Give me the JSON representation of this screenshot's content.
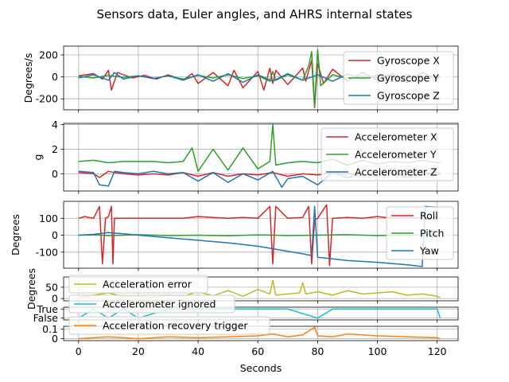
{
  "chart_data": {
    "type": "line",
    "title": "Sensors data, Euler angles, and AHRS internal states",
    "xlabel": "Seconds",
    "xlim": [
      -5,
      127
    ],
    "xticks": [
      0,
      20,
      40,
      60,
      80,
      100,
      120
    ],
    "grid": true,
    "panels": [
      {
        "name": "gyroscope",
        "ylabel": "Degrees/s",
        "ylim": [
          -300,
          280
        ],
        "yticks": [
          -200,
          0,
          200
        ],
        "legend_position": "right",
        "series": [
          {
            "name": "Gyroscope X",
            "color": "#d62728",
            "x": [
              0,
              5,
              8,
              10,
              11,
              13,
              15,
              18,
              22,
              26,
              30,
              35,
              38,
              40,
              45,
              50,
              52,
              55,
              60,
              62,
              64,
              65,
              66,
              70,
              75,
              76,
              78,
              79,
              80,
              82,
              85,
              90,
              95,
              100,
              105,
              110,
              115,
              120,
              121
            ],
            "y": [
              10,
              30,
              -20,
              60,
              -120,
              40,
              20,
              -10,
              15,
              -20,
              20,
              -30,
              30,
              -60,
              40,
              -80,
              60,
              -100,
              50,
              -120,
              80,
              -60,
              60,
              -70,
              80,
              -40,
              150,
              -280,
              120,
              -60,
              70,
              -40,
              40,
              -30,
              30,
              -50,
              40,
              -20,
              0
            ]
          },
          {
            "name": "Gyroscope Y",
            "color": "#2ca02c",
            "x": [
              0,
              5,
              10,
              15,
              20,
              25,
              30,
              35,
              40,
              45,
              50,
              55,
              60,
              64,
              65,
              66,
              70,
              75,
              77,
              78,
              79,
              80,
              81,
              85,
              90,
              95,
              100,
              105,
              110,
              115,
              120,
              121
            ],
            "y": [
              5,
              -10,
              15,
              -5,
              10,
              -15,
              10,
              -20,
              15,
              -10,
              20,
              -15,
              10,
              -40,
              50,
              -30,
              20,
              -30,
              100,
              230,
              -270,
              250,
              -80,
              20,
              -15,
              10,
              -10,
              15,
              -10,
              10,
              -5,
              0
            ]
          },
          {
            "name": "Gyroscope Z",
            "color": "#1f77b4",
            "x": [
              0,
              5,
              10,
              12,
              15,
              20,
              25,
              30,
              35,
              40,
              45,
              50,
              55,
              60,
              65,
              70,
              75,
              80,
              85,
              90,
              95,
              100,
              105,
              110,
              115,
              120,
              121
            ],
            "y": [
              -10,
              20,
              -30,
              40,
              -20,
              10,
              -15,
              10,
              -30,
              20,
              -40,
              30,
              -50,
              20,
              -40,
              30,
              -30,
              20,
              -40,
              25,
              -20,
              15,
              -25,
              20,
              -15,
              10,
              0
            ]
          }
        ]
      },
      {
        "name": "accelerometer",
        "ylabel": "g",
        "ylim": [
          -1.4,
          4.1
        ],
        "yticks": [
          0,
          2,
          4
        ],
        "legend_position": "right",
        "series": [
          {
            "name": "Accelerometer X",
            "color": "#d62728",
            "x": [
              0,
              5,
              7,
              10,
              12,
              15,
              20,
              25,
              30,
              35,
              40,
              45,
              50,
              55,
              60,
              65,
              70,
              75,
              80,
              85,
              90,
              95,
              100,
              105,
              110,
              115,
              120,
              121
            ],
            "y": [
              0.1,
              0.0,
              -0.3,
              0.2,
              0.1,
              0.0,
              -0.1,
              0.0,
              -0.1,
              0.1,
              -0.2,
              0.1,
              -0.2,
              0.0,
              -0.1,
              0.1,
              -0.2,
              0.0,
              -0.1,
              0.1,
              0.0,
              -0.1,
              0.0,
              0.1,
              -0.1,
              0.0,
              0.1,
              0.0
            ]
          },
          {
            "name": "Accelerometer Y",
            "color": "#2ca02c",
            "x": [
              0,
              5,
              10,
              15,
              20,
              25,
              30,
              35,
              38,
              40,
              45,
              50,
              55,
              60,
              64,
              65,
              66,
              70,
              75,
              80,
              85,
              90,
              95,
              100,
              105,
              110,
              115,
              120,
              121
            ],
            "y": [
              1.0,
              1.1,
              0.9,
              1.0,
              1.0,
              1.0,
              0.9,
              1.0,
              2.1,
              0.2,
              2.0,
              0.3,
              2.1,
              0.4,
              1.0,
              4.0,
              0.7,
              0.9,
              1.0,
              0.9,
              1.2,
              0.7,
              1.1,
              0.8,
              1.0,
              0.9,
              1.1,
              0.9,
              0.9
            ]
          },
          {
            "name": "Accelerometer Z",
            "color": "#1f77b4",
            "x": [
              0,
              5,
              7,
              10,
              12,
              15,
              20,
              25,
              30,
              35,
              40,
              45,
              50,
              55,
              60,
              65,
              68,
              70,
              75,
              80,
              85,
              90,
              95,
              100,
              105,
              110,
              115,
              120,
              121
            ],
            "y": [
              0.2,
              0.1,
              -0.9,
              -1.0,
              0.2,
              0.1,
              0.0,
              0.2,
              0.0,
              0.1,
              -0.6,
              0.1,
              -0.7,
              0.0,
              -0.5,
              0.2,
              -1.1,
              -0.4,
              -0.2,
              -0.9,
              0.1,
              -0.3,
              0.0,
              -0.2,
              0.1,
              -0.3,
              0.0,
              -0.1,
              0.0
            ]
          }
        ]
      },
      {
        "name": "euler",
        "ylabel": "Degrees",
        "ylim": [
          -195,
          200
        ],
        "yticks": [
          -100,
          0,
          100
        ],
        "legend_position": "right",
        "series": [
          {
            "name": "Roll",
            "color": "#d62728",
            "x": [
              0,
              2,
              5,
              7,
              8,
              9,
              10,
              11,
              11.5,
              12,
              15,
              20,
              30,
              35,
              40,
              45,
              50,
              55,
              60,
              64,
              65,
              66,
              70,
              75,
              77,
              78,
              79,
              80,
              83,
              84,
              85,
              90,
              95,
              100,
              105,
              110,
              115,
              120,
              121
            ],
            "y": [
              100,
              110,
              100,
              170,
              -170,
              100,
              110,
              170,
              -170,
              100,
              100,
              100,
              100,
              100,
              110,
              105,
              100,
              105,
              100,
              170,
              -170,
              170,
              100,
              105,
              170,
              -170,
              90,
              100,
              180,
              -180,
              100,
              105,
              100,
              110,
              100,
              105,
              100,
              105,
              100
            ]
          },
          {
            "name": "Pitch",
            "color": "#2ca02c",
            "x": [
              0,
              5,
              10,
              15,
              20,
              30,
              40,
              50,
              60,
              65,
              70,
              80,
              90,
              100,
              110,
              120,
              121
            ],
            "y": [
              0,
              2,
              -2,
              0,
              3,
              -2,
              0,
              -3,
              2,
              0,
              -2,
              0,
              3,
              -2,
              0,
              2,
              0
            ]
          },
          {
            "name": "Yaw",
            "color": "#1f77b4",
            "x": [
              0,
              5,
              10,
              15,
              20,
              30,
              40,
              50,
              60,
              65,
              70,
              75,
              78,
              79,
              80,
              85,
              90,
              100,
              110,
              115,
              116,
              120,
              121
            ],
            "y": [
              0,
              5,
              15,
              8,
              0,
              -15,
              -30,
              -45,
              -65,
              -80,
              -95,
              -110,
              -120,
              170,
              -130,
              -140,
              -150,
              -160,
              -175,
              -185,
              170,
              165,
              165
            ]
          }
        ]
      },
      {
        "name": "acceleration-error",
        "ylabel": "Degrees",
        "ylim": [
          -10,
          95
        ],
        "yticks": [
          0,
          50
        ],
        "legend_position": "top-left",
        "series": [
          {
            "name": "Acceleration error",
            "color": "#bcbd22",
            "x": [
              0,
              5,
              10,
              15,
              20,
              25,
              30,
              35,
              40,
              45,
              50,
              55,
              60,
              64,
              65,
              66,
              70,
              74,
              75,
              76,
              80,
              85,
              90,
              95,
              100,
              105,
              110,
              115,
              120,
              121
            ],
            "y": [
              5,
              15,
              25,
              8,
              10,
              5,
              15,
              10,
              30,
              12,
              35,
              10,
              40,
              20,
              80,
              15,
              20,
              25,
              70,
              20,
              30,
              15,
              35,
              20,
              25,
              30,
              15,
              20,
              10,
              5
            ]
          }
        ]
      },
      {
        "name": "accelerometer-ignored",
        "ylabel": "",
        "yticks_text": [
          "False",
          "True"
        ],
        "ylim": [
          -0.2,
          1.2
        ],
        "legend_position": "top-left",
        "series": [
          {
            "name": "Accelerometer ignored",
            "color": "#17becf",
            "x": [
              0,
              5,
              10,
              15,
              20,
              30,
              40,
              50,
              60,
              70,
              80,
              85,
              90,
              100,
              110,
              120,
              121
            ],
            "y": [
              0,
              1,
              0,
              1,
              0,
              1,
              1,
              1,
              1,
              1,
              0,
              1,
              1,
              1,
              1,
              1,
              0
            ]
          }
        ]
      },
      {
        "name": "recovery-trigger",
        "ylabel": "",
        "ylim": [
          -0.02,
          0.13
        ],
        "yticks": [
          0.0,
          0.1
        ],
        "legend_position": "top-left",
        "series": [
          {
            "name": "Acceleration recovery trigger",
            "color": "#ff7f0e",
            "x": [
              0,
              5,
              10,
              15,
              20,
              30,
              40,
              50,
              60,
              65,
              70,
              75,
              79,
              80,
              85,
              90,
              100,
              110,
              120,
              121
            ],
            "y": [
              0,
              0.01,
              0.02,
              0.01,
              0,
              0.02,
              0.01,
              0.02,
              0.03,
              0.05,
              0.02,
              0.04,
              0.12,
              0.03,
              0.02,
              0.05,
              0.03,
              0.02,
              0.01,
              0
            ]
          }
        ]
      }
    ]
  }
}
